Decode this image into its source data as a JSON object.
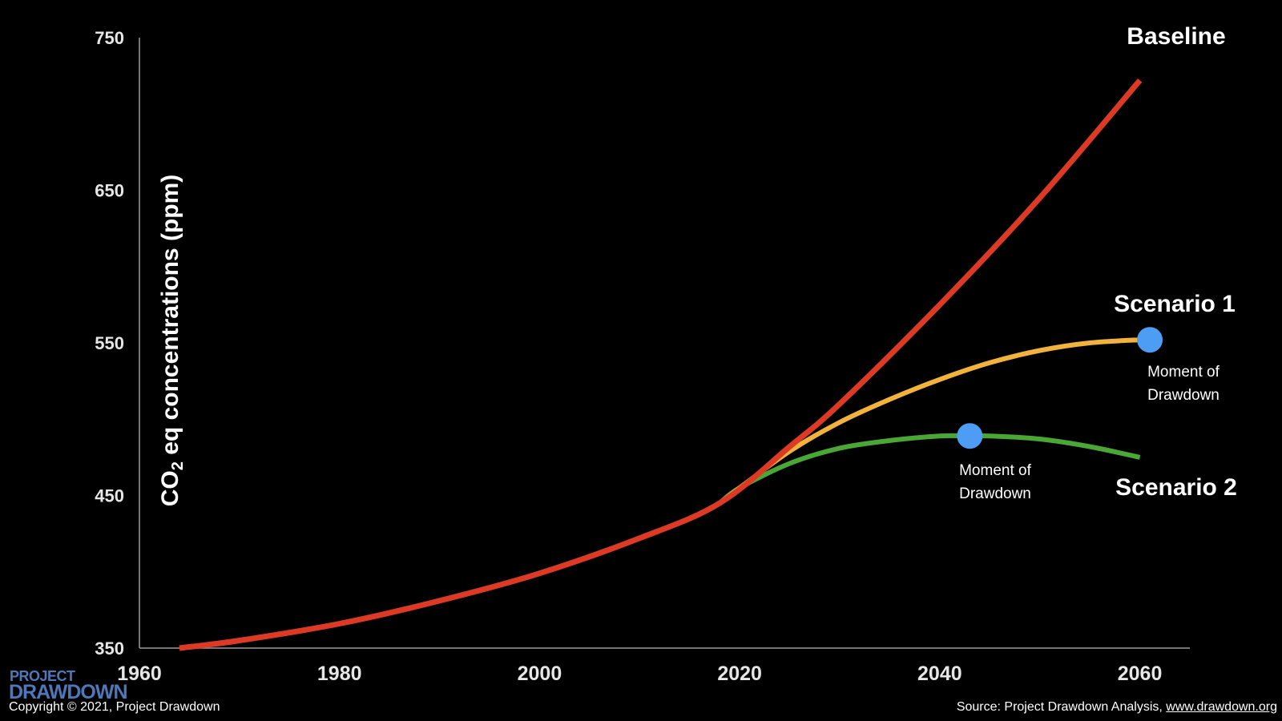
{
  "chart_data": {
    "type": "line",
    "ylabel_main": "CO",
    "ylabel_sub": "2",
    "ylabel_rest": " eq concentrations (ppm)",
    "xlim": [
      1960,
      2065
    ],
    "ylim": [
      350,
      750
    ],
    "x_ticks": [
      1960,
      1980,
      2000,
      2020,
      2040,
      2060
    ],
    "y_ticks": [
      350,
      450,
      550,
      650,
      750
    ],
    "grid": false,
    "series": [
      {
        "name": "Baseline",
        "color": "#dc3a25",
        "x": [
          1964,
          1970,
          1980,
          1990,
          2000,
          2010,
          2018,
          2025,
          2030,
          2040,
          2050,
          2060
        ],
        "y": [
          350,
          355,
          366,
          381,
          399,
          422,
          445,
          482,
          510,
          575,
          645,
          722
        ]
      },
      {
        "name": "Scenario 1",
        "color": "#f2b33d",
        "x": [
          2018,
          2020,
          2025,
          2030,
          2035,
          2040,
          2045,
          2050,
          2055,
          2060,
          2061
        ],
        "y": [
          445,
          455,
          479,
          498,
          513,
          526,
          537,
          545,
          550,
          552,
          552
        ]
      },
      {
        "name": "Scenario 2",
        "color": "#4aa635",
        "x": [
          2018,
          2020,
          2025,
          2030,
          2035,
          2040,
          2043,
          2045,
          2050,
          2055,
          2060
        ],
        "y": [
          445,
          455,
          471,
          481,
          486,
          489,
          489,
          489,
          487,
          482,
          475
        ]
      }
    ],
    "markers": [
      {
        "name": "Moment of Drawdown",
        "series": "Scenario 1",
        "x": 2061,
        "y": 552,
        "color": "#4d9df5"
      },
      {
        "name": "Moment of Drawdown",
        "series": "Scenario 2",
        "x": 2043,
        "y": 489,
        "color": "#4d9df5"
      }
    ],
    "annotations": [
      {
        "line1": "Moment of",
        "line2": "Drawdown"
      },
      {
        "line1": "Moment of",
        "line2": "Drawdown"
      }
    ]
  },
  "logo": {
    "top": "PROJECT",
    "bottom": "DRAWDOWN"
  },
  "footer": {
    "copyright": "Copyright © 2021, Project Drawdown",
    "source_prefix": "Source: Project Drawdown Analysis, ",
    "source_link": "www.drawdown.org"
  }
}
